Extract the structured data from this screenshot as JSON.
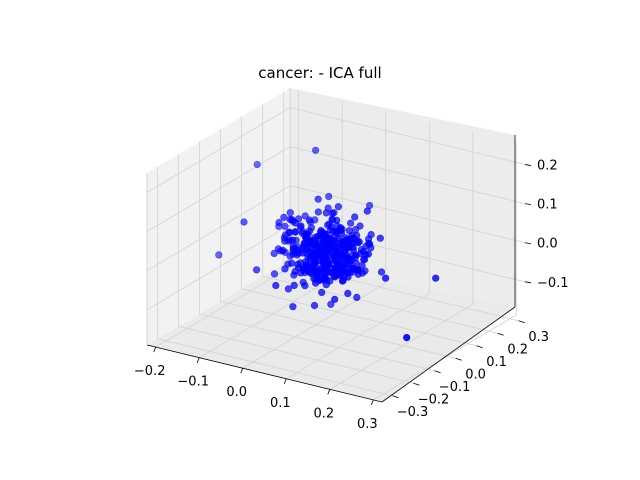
{
  "chart_data": {
    "type": "scatter",
    "title": "cancer: - ICA full",
    "projection": "3d",
    "xlabel": "",
    "ylabel": "",
    "zlabel": "",
    "xlim": [
      -0.22,
      0.32
    ],
    "ylim": [
      -0.35,
      0.33
    ],
    "zlim": [
      -0.19,
      0.25
    ],
    "x_ticks": [
      "−0.2",
      "−0.1",
      "0.0",
      "0.1",
      "0.2",
      "0.3"
    ],
    "y_ticks": [
      "−0.3",
      "−0.2",
      "−0.1",
      "0.0",
      "0.1",
      "0.2",
      "0.3"
    ],
    "z_ticks": [
      "−0.1",
      "0.0",
      "0.1",
      "0.2"
    ],
    "x_tick_values": [
      -0.2,
      -0.1,
      0.0,
      0.1,
      0.2,
      0.3
    ],
    "y_tick_values": [
      -0.3,
      -0.2,
      -0.1,
      0.0,
      0.1,
      0.2,
      0.3
    ],
    "z_tick_values": [
      -0.1,
      0.0,
      0.1,
      0.2
    ],
    "grid": true,
    "marker_color": "#0000ff",
    "outliers": [
      {
        "x": -0.05,
        "y": 0.1,
        "z": 0.21
      },
      {
        "x": -0.16,
        "y": 0.05,
        "z": 0.16
      },
      {
        "x": -0.2,
        "y": -0.05,
        "z": -0.05
      },
      {
        "x": 0.25,
        "y": 0.05,
        "z": -0.02
      },
      {
        "x": 0.28,
        "y": -0.15,
        "z": -0.1
      },
      {
        "x": -0.02,
        "y": 0.1,
        "z": 0.1
      },
      {
        "x": 0.05,
        "y": 0.15,
        "z": 0.08
      },
      {
        "x": 0.02,
        "y": -0.05,
        "z": -0.12
      }
    ],
    "cluster": {
      "center": {
        "x": 0.02,
        "y": 0.0,
        "z": 0.0
      },
      "spread": {
        "x": 0.045,
        "y": 0.045,
        "z": 0.04
      },
      "count": 400
    }
  }
}
